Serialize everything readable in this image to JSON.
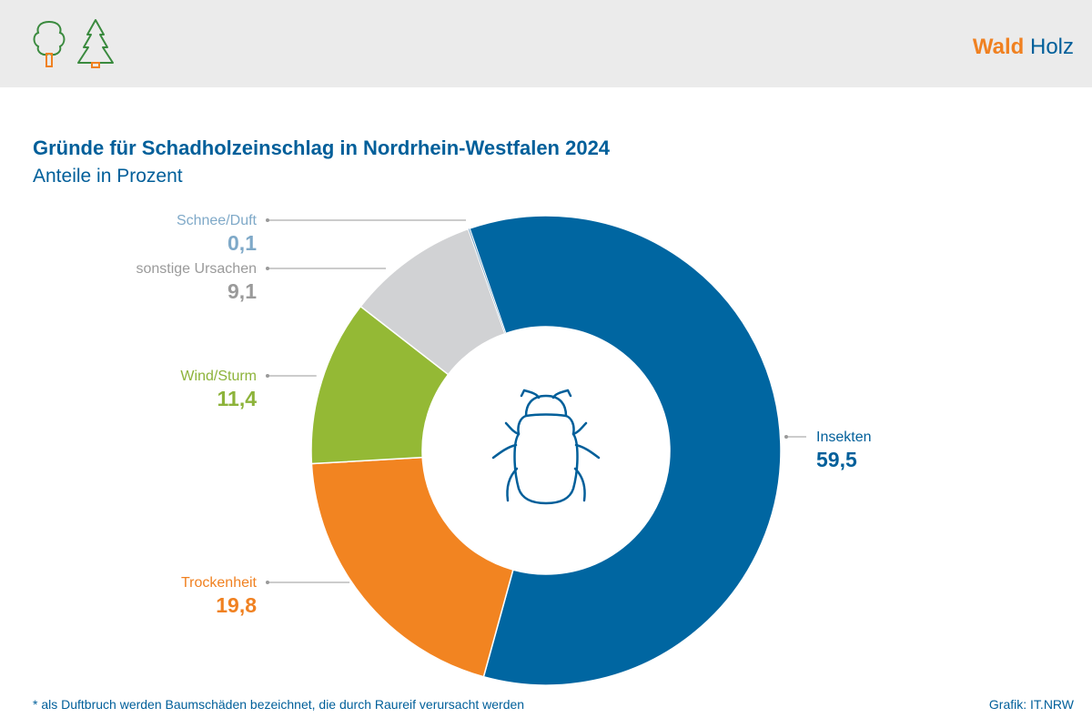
{
  "header": {
    "brand_primary": "Wald",
    "brand_secondary": "Holz"
  },
  "chart_data": {
    "type": "pie",
    "variant": "donut",
    "title": "Gründe für Schadholzeinschlag in Nordrhein-Westfalen 2024",
    "subtitle": "Anteile in Prozent",
    "center_icon": "beetle-icon",
    "slices": [
      {
        "label": "Insekten",
        "value": 59.5,
        "value_text": "59,5",
        "color": "#0066a1",
        "label_color": "#005f9a",
        "side": "right"
      },
      {
        "label": "Trockenheit",
        "value": 19.8,
        "value_text": "19,8",
        "color": "#f28421",
        "label_color": "#f08121",
        "side": "left"
      },
      {
        "label": "Wind/Sturm",
        "value": 11.4,
        "value_text": "11,4",
        "color": "#94b935",
        "label_color": "#8db33a",
        "side": "left"
      },
      {
        "label": "sonstige Ursachen",
        "value": 9.1,
        "value_text": "9,1",
        "color": "#d1d2d4",
        "label_color": "#9a9a9a",
        "side": "left"
      },
      {
        "label": "Schnee/Duft",
        "value": 0.1,
        "value_text": "0,1",
        "color": "#7fa9c8",
        "label_color": "#7fa9c8",
        "side": "left"
      }
    ]
  },
  "footer": {
    "footnote": "* als Duftbruch werden Baumschäden bezeichnet, die durch Raureif verursacht werden",
    "credit": "Grafik: IT.NRW"
  }
}
